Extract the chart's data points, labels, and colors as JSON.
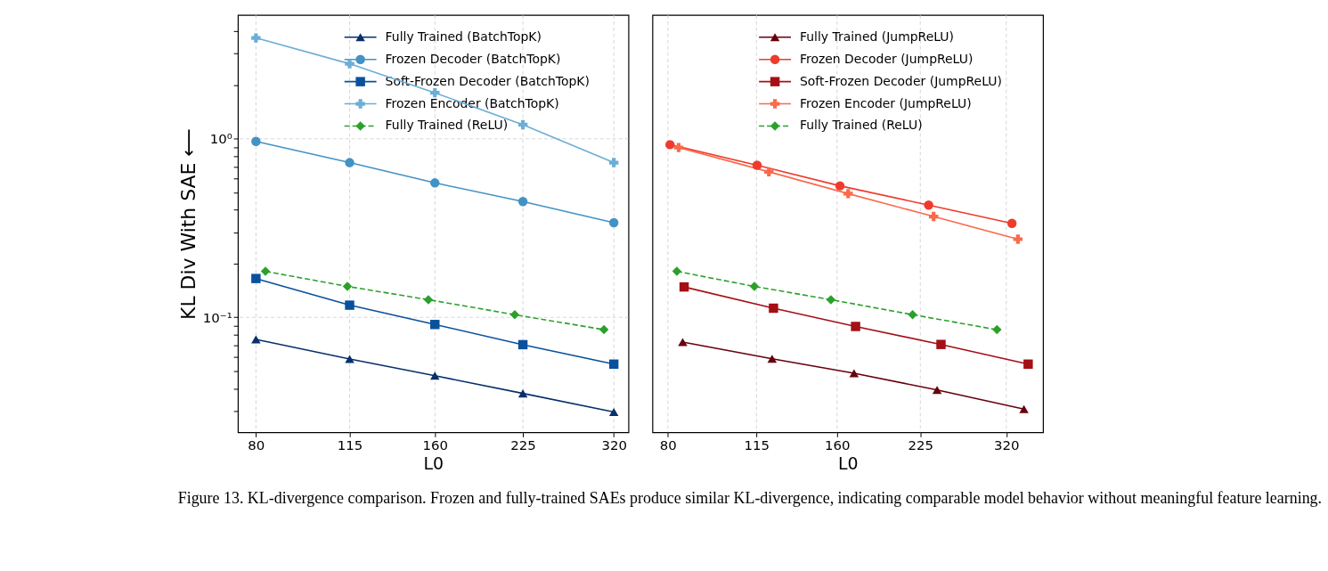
{
  "chart_data": [
    {
      "type": "line",
      "xlabel": "L0",
      "ylabel": "KL Div With SAE ⟵",
      "log": "xy",
      "grid": true,
      "legend": "top right",
      "xlim": [
        74.6,
        338.7
      ],
      "xticks": [
        80,
        115,
        160,
        225,
        320
      ],
      "ylim": [
        0.0227,
        4.93
      ],
      "yticks": [
        {
          "value": 0.03,
          "label": null
        },
        {
          "value": 0.04,
          "label": null
        },
        {
          "value": 0.05,
          "label": null
        },
        {
          "value": 0.06,
          "label": null
        },
        {
          "value": 0.07,
          "label": null
        },
        {
          "value": 0.08,
          "label": null
        },
        {
          "value": 0.09,
          "label": null
        },
        {
          "value": 0.1,
          "label": "10⁻¹"
        },
        {
          "value": 0.2,
          "label": null
        },
        {
          "value": 0.3,
          "label": null
        },
        {
          "value": 0.4,
          "label": null
        },
        {
          "value": 0.5,
          "label": null
        },
        {
          "value": 0.6,
          "label": null
        },
        {
          "value": 0.7,
          "label": null
        },
        {
          "value": 0.8,
          "label": null
        },
        {
          "value": 0.9,
          "label": null
        },
        {
          "value": 1,
          "label": "10⁰"
        },
        {
          "value": 2,
          "label": null
        },
        {
          "value": 3,
          "label": null
        },
        {
          "value": 4,
          "label": null
        }
      ],
      "annotations": [
        "Figure 13. KL-divergence comparison. Frozen and fully-trained SAEs produce similar KL-divergence, indicating comparable model behavior without meaningful feature learning."
      ],
      "series": [
        {
          "name": "Fully Trained (BatchTopK)",
          "color": "#08306b",
          "marker": "triangle",
          "line_style": "solid",
          "x": [
            80,
            115,
            160,
            225,
            320
          ],
          "values": [
            0.0752,
            0.0585,
            0.0471,
            0.0375,
            0.0295
          ]
        },
        {
          "name": "Frozen Decoder (BatchTopK)",
          "color": "#4292c6",
          "marker": "circle",
          "line_style": "solid",
          "x": [
            80,
            115,
            160,
            225,
            320
          ],
          "values": [
            0.966,
            0.735,
            0.566,
            0.445,
            0.339
          ]
        },
        {
          "name": "Soft-Frozen Decoder (BatchTopK)",
          "color": "#08519c",
          "marker": "square",
          "line_style": "solid",
          "x": [
            80,
            115,
            160,
            225,
            320
          ],
          "values": [
            0.165,
            0.117,
            0.0912,
            0.0703,
            0.0547
          ]
        },
        {
          "name": "Frozen Encoder (BatchTopK)",
          "color": "#6baed6",
          "marker": "cross",
          "line_style": "solid",
          "x": [
            80,
            115,
            160,
            225,
            320
          ],
          "values": [
            3.67,
            2.63,
            1.81,
            1.2,
            0.735
          ]
        },
        {
          "name": "Fully Trained (ReLU)",
          "color": "#2ca02c",
          "marker": "diamond",
          "line_style": "dashed",
          "x": [
            83,
            114,
            156,
            218,
            308
          ],
          "values": [
            0.181,
            0.149,
            0.1256,
            0.1035,
            0.0853
          ]
        }
      ]
    },
    {
      "type": "line",
      "xlabel": "L0",
      "log": "xy",
      "grid": "x",
      "legend": "top right",
      "tick_labels": "x",
      "xlim": [
        75.1,
        372
      ],
      "xticks": [
        80,
        115,
        160,
        225,
        320
      ],
      "ylim": [
        0.0227,
        4.93
      ],
      "series": [
        {
          "name": "Fully Trained (JumpReLU)",
          "color": "#67000d",
          "marker": "triangle",
          "line_style": "solid",
          "x": [
            85,
            122.6,
            171.5,
            241,
            344
          ],
          "values": [
            0.0727,
            0.0586,
            0.0486,
            0.0392,
            0.0306
          ]
        },
        {
          "name": "Frozen Decoder (JumpReLU)",
          "color": "#ef3b2c",
          "marker": "circle",
          "line_style": "solid",
          "x": [
            80.7,
            115.3,
            161.9,
            232.8,
            327.5
          ],
          "values": [
            0.927,
            0.711,
            0.545,
            0.425,
            0.336
          ]
        },
        {
          "name": "Soft-Frozen Decoder (JumpReLU)",
          "color": "#a50f15",
          "marker": "square",
          "line_style": "solid",
          "x": [
            85.5,
            123.3,
            172.6,
            244.9,
            350
          ],
          "values": [
            0.148,
            0.1125,
            0.0889,
            0.0705,
            0.0547
          ]
        },
        {
          "name": "Frozen Encoder (JumpReLU)",
          "color": "#fb6a4a",
          "marker": "cross",
          "line_style": "solid",
          "x": [
            83.6,
            121,
            167.4,
            237.6,
            335.6
          ],
          "values": [
            0.893,
            0.653,
            0.493,
            0.367,
            0.274
          ]
        },
        {
          "name": "Fully Trained (ReLU)",
          "color": "#2ca02c",
          "marker": "diamond",
          "line_style": "dashed",
          "x": [
            83,
            114,
            156,
            218,
            308
          ],
          "values": [
            0.181,
            0.149,
            0.1256,
            0.1035,
            0.0853
          ]
        }
      ]
    }
  ]
}
